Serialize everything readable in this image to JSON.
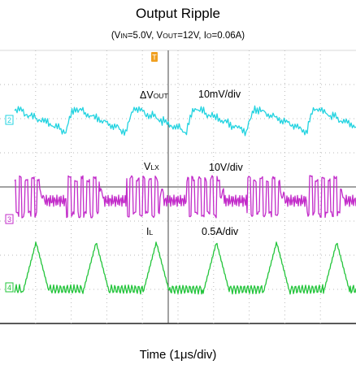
{
  "chart_data": {
    "type": "line",
    "title": "Output Ripple",
    "subtitle": {
      "open": "(V",
      "vin_sub": "IN",
      "vin_value": "=5.0V, V",
      "vout_sub": "OUT",
      "vout_value": "=12V, I",
      "io_sub": "O",
      "io_value": "=0.06A)"
    },
    "xlabel": "Time (1μs/div)",
    "grid": true,
    "x_divisions": 10,
    "y_divisions": 8,
    "trigger_marker": "T",
    "series": [
      {
        "channel": "2",
        "color": "#22d3e0",
        "label_main": "ΔV",
        "label_sub": "OUT",
        "scale": "10mV/div",
        "period_us": 1.6,
        "waveform": "sawtooth-ripple"
      },
      {
        "channel": "3",
        "color": "#c22bc9",
        "label_main": "V",
        "label_sub": "LX",
        "scale": "10V/div",
        "period_us": 1.6,
        "waveform": "switching-burst"
      },
      {
        "channel": "4",
        "color": "#22c43a",
        "label_main": "I",
        "label_sub": "L",
        "scale": "0.5A/div",
        "period_us": 1.6,
        "waveform": "triangular-current"
      }
    ]
  }
}
